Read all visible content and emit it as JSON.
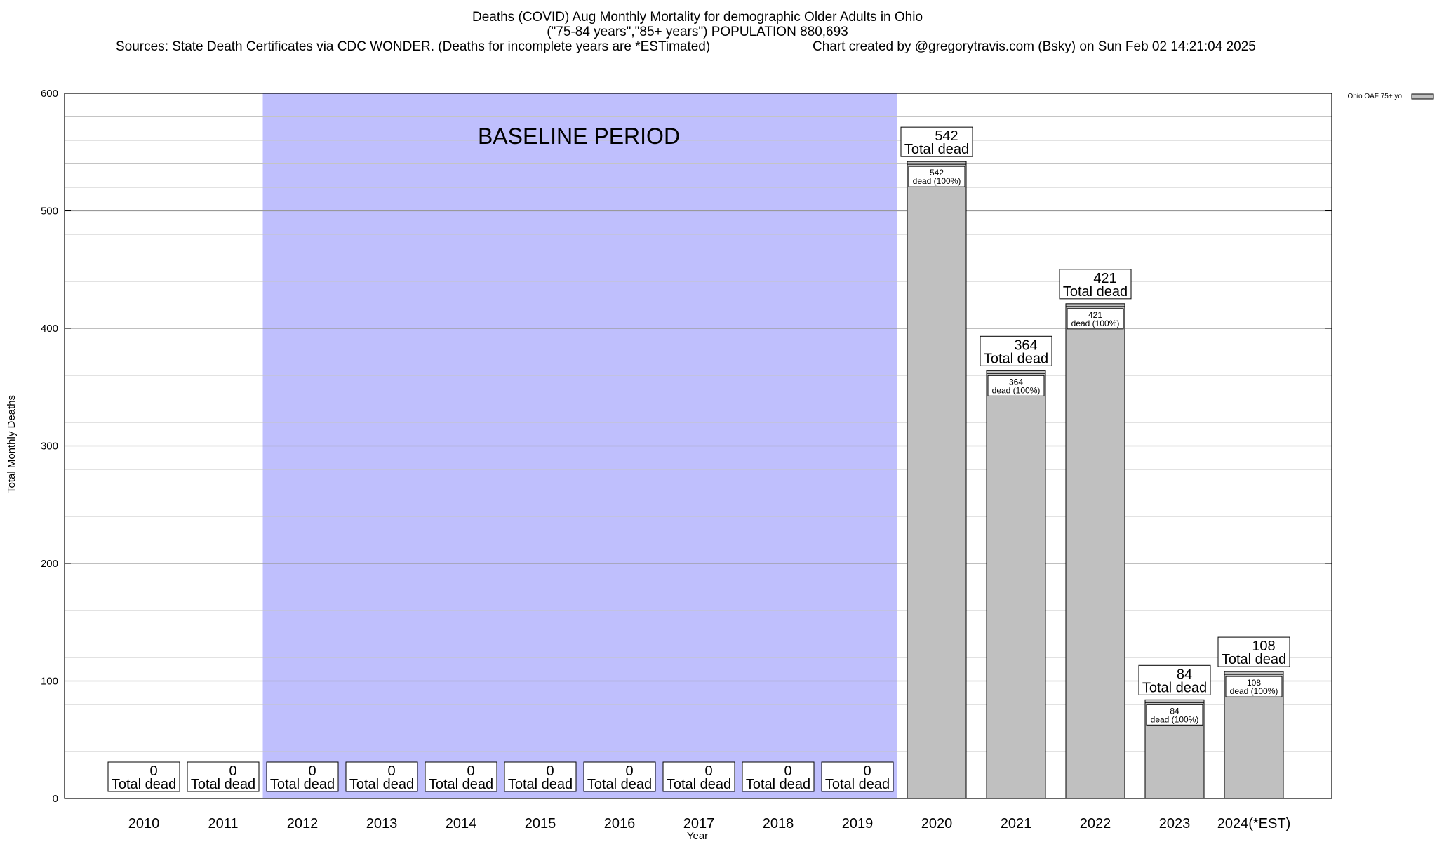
{
  "chart_data": {
    "type": "bar",
    "title": "Deaths (COVID) Aug Monthly Mortality for demographic Older Adults in Ohio",
    "subtitle": "(\"75-84 years\",\"85+ years\") POPULATION 880,693",
    "sources": "Sources: State Death Certificates via CDC WONDER. (Deaths for incomplete years are *ESTimated)",
    "credit": "Chart created by @gregorytravis.com (Bsky) on Sun Feb 02 14:21:04 2025",
    "xlabel": "Year",
    "ylabel": "Total Monthly Deaths",
    "ylim": [
      0,
      600
    ],
    "yticks": [
      "0",
      "100",
      "200",
      "300",
      "400",
      "500",
      "600"
    ],
    "baseline_label": "BASELINE PERIOD",
    "baseline_range": [
      "2012",
      "2019"
    ],
    "baseline_color": "#bfbffd",
    "bar_color": "#c0c0c0",
    "legend": {
      "label": "Ohio OAF 75+ yo",
      "placement": "top-right"
    },
    "total_dead_label": "Total dead",
    "categories": [
      "2010",
      "2011",
      "2012",
      "2013",
      "2014",
      "2015",
      "2016",
      "2017",
      "2018",
      "2019",
      "2020",
      "2021",
      "2022",
      "2023",
      "2024(*EST)"
    ],
    "values": [
      0,
      0,
      0,
      0,
      0,
      0,
      0,
      0,
      0,
      0,
      542,
      364,
      421,
      84,
      108
    ],
    "inner_labels": [
      "",
      "",
      "",
      "",
      "",
      "",
      "",
      "",
      "",
      "",
      "dead (100%)",
      "dead (100%)",
      "dead (100%)",
      "dead (100%)",
      "dead (100%)"
    ]
  }
}
